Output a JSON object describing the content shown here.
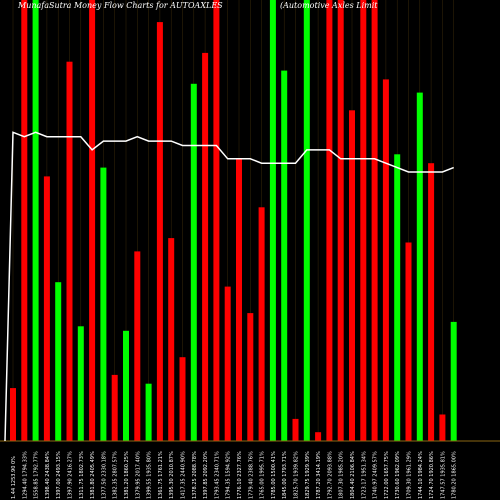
{
  "header": {
    "title_left": "MunafaSutra  Money Flow  Charts for AUTOAXLES",
    "title_right": "(Automotive Axles Limit"
  },
  "colors": {
    "background": "#000000",
    "up": "#00ff00",
    "down": "#ff0000",
    "line": "#ffffff",
    "baseline": "#8b6914",
    "gridline": "#3a2a0a"
  },
  "chart_data": {
    "type": "bar",
    "title": "MunafaSutra  Money Flow  Charts for AUTOAXLES (Automotive Axles Limit",
    "xlabel": "",
    "ylabel": "",
    "ylim": [
      0,
      100
    ],
    "grid": true,
    "categories": [
      "1.44 1253.90 0%",
      "1294.40 1794.33%",
      "1558.85 1792.77%",
      "1398.40 2438.84%",
      "1397.00 2493.15%",
      "1397.90 2416.27%",
      "1311.75 1802.73%",
      "1381.80 2405.49%",
      "1377.50 2330.18%",
      "1382.35 2807.57%",
      "1381.20 1860.25%",
      "1379.95 2017.40%",
      "1399.55 1935.80%",
      "1361.75 1761.21%",
      "1395.30 2010.87%",
      "1417.35 2440.90%",
      "1378.25 2088.78%",
      "1397.85 2092.20%",
      "1793.45 2340.71%",
      "1794.35 1594.92%",
      "1776.10 2327.76%",
      "1779.40 2388.76%",
      "1765.00 1995.71%",
      "1785.00 1500.41%",
      "1845.00 1793.71%",
      "1825.70 1939.82%",
      "1829.75 1929.39%",
      "1787.20 3414.19%",
      "1792.70 2093.88%",
      "1807.30 1985.20%",
      "1804.40 2106.84%",
      "1723.17 1951.34%",
      "1740.97 2409.57%",
      "1722.00 1657.75%",
      "1730.60 1962.09%",
      "1709.30 1961.29%",
      "1744.10 1984.24%",
      "1724.70 1920.86%",
      "1747.57 1935.81%",
      "1780.20 1865.00%"
    ],
    "series": [
      {
        "values": [
          12,
          100,
          100,
          60,
          36,
          86,
          26,
          100,
          62,
          15,
          25,
          43,
          13,
          95,
          46,
          19,
          81,
          88,
          100,
          35,
          64,
          29,
          53,
          100,
          84,
          5,
          100,
          2,
          100,
          100,
          75,
          100,
          100,
          82,
          65,
          45,
          79,
          63,
          6,
          27
        ],
        "directions": [
          "down",
          "down",
          "up",
          "down",
          "up",
          "down",
          "up",
          "down",
          "up",
          "down",
          "up",
          "down",
          "up",
          "down",
          "down",
          "down",
          "up",
          "down",
          "down",
          "down",
          "down",
          "down",
          "down",
          "up",
          "up",
          "down",
          "up",
          "down",
          "down",
          "down",
          "down",
          "down",
          "down",
          "down",
          "up",
          "down",
          "up",
          "down",
          "down",
          "up"
        ]
      },
      {
        "values": [
          70,
          69,
          70,
          69,
          69,
          69,
          69,
          66,
          68,
          68,
          68,
          69,
          68,
          68,
          68,
          67,
          67,
          67,
          67,
          64,
          64,
          64,
          63,
          63,
          63,
          63,
          66,
          66,
          66,
          64,
          64,
          64,
          64,
          63,
          62,
          61,
          61,
          61,
          61,
          62
        ]
      }
    ]
  }
}
